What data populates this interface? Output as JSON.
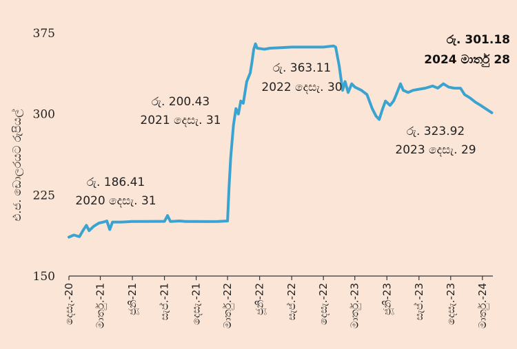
{
  "chart_data": {
    "type": "line",
    "ylabel": "එ.ජ. ඩොලරයට රුපියල්",
    "ylim": [
      150,
      375
    ],
    "yticks": [
      "375",
      "300",
      "225",
      "150"
    ],
    "ytick_values": [
      375,
      300,
      225,
      150
    ],
    "xlim": [
      "2020-12-01",
      "2024-03-31"
    ],
    "xticks": [
      {
        "label": "දෙසැ.-20",
        "date": "2020-12-01"
      },
      {
        "label": "මාර්තු.-21",
        "date": "2021-03-01"
      },
      {
        "label": "ජූනි-21",
        "date": "2021-06-01"
      },
      {
        "label": "සැප්.-21",
        "date": "2021-09-01"
      },
      {
        "label": "දෙසැ.-21",
        "date": "2021-12-01"
      },
      {
        "label": "මාර්තු.-22",
        "date": "2022-03-01"
      },
      {
        "label": "ජූනි-22",
        "date": "2022-06-01"
      },
      {
        "label": "සැප්.-22",
        "date": "2022-09-01"
      },
      {
        "label": "දෙසැ.-22",
        "date": "2022-12-01"
      },
      {
        "label": "මාර්තු.-23",
        "date": "2023-03-01"
      },
      {
        "label": "ජූනි-23",
        "date": "2023-06-01"
      },
      {
        "label": "සැප්.-23",
        "date": "2023-09-01"
      },
      {
        "label": "දෙසැ.-23",
        "date": "2023-12-01"
      },
      {
        "label": "මාර්තු.-24",
        "date": "2024-03-01"
      }
    ],
    "series": [
      {
        "color": "#3BA3D0",
        "points": [
          [
            "2020-12-01",
            186
          ],
          [
            "2020-12-15",
            188
          ],
          [
            "2020-12-31",
            186.41
          ],
          [
            "2021-01-10",
            192
          ],
          [
            "2021-01-20",
            197
          ],
          [
            "2021-01-28",
            192
          ],
          [
            "2021-02-10",
            196
          ],
          [
            "2021-02-25",
            199
          ],
          [
            "2021-03-10",
            200
          ],
          [
            "2021-03-20",
            201
          ],
          [
            "2021-03-28",
            193
          ],
          [
            "2021-04-05",
            200
          ],
          [
            "2021-05-01",
            200
          ],
          [
            "2021-06-01",
            200.5
          ],
          [
            "2021-07-01",
            200.5
          ],
          [
            "2021-08-01",
            200.6
          ],
          [
            "2021-09-01",
            200.6
          ],
          [
            "2021-09-10",
            206
          ],
          [
            "2021-09-18",
            200.5
          ],
          [
            "2021-10-15",
            201
          ],
          [
            "2021-11-01",
            200.5
          ],
          [
            "2021-12-01",
            200.5
          ],
          [
            "2021-12-31",
            200.43
          ],
          [
            "2022-02-01",
            200.5
          ],
          [
            "2022-03-01",
            201
          ],
          [
            "2022-03-05",
            230
          ],
          [
            "2022-03-10",
            260
          ],
          [
            "2022-03-18",
            290
          ],
          [
            "2022-03-25",
            305
          ],
          [
            "2022-04-01",
            300
          ],
          [
            "2022-04-08",
            312
          ],
          [
            "2022-04-15",
            310
          ],
          [
            "2022-04-25",
            330
          ],
          [
            "2022-05-05",
            338
          ],
          [
            "2022-05-10",
            348
          ],
          [
            "2022-05-15",
            360
          ],
          [
            "2022-05-20",
            365
          ],
          [
            "2022-05-25",
            361
          ],
          [
            "2022-06-15",
            360
          ],
          [
            "2022-07-01",
            361
          ],
          [
            "2022-08-01",
            361.5
          ],
          [
            "2022-09-01",
            362
          ],
          [
            "2022-10-01",
            362
          ],
          [
            "2022-11-01",
            362
          ],
          [
            "2022-12-01",
            362
          ],
          [
            "2022-12-30",
            363.11
          ],
          [
            "2023-01-05",
            362
          ],
          [
            "2023-01-15",
            345
          ],
          [
            "2023-01-25",
            322
          ],
          [
            "2023-02-01",
            330
          ],
          [
            "2023-02-10",
            320
          ],
          [
            "2023-02-20",
            328
          ],
          [
            "2023-03-01",
            325
          ],
          [
            "2023-03-20",
            322
          ],
          [
            "2023-04-05",
            318
          ],
          [
            "2023-04-20",
            305
          ],
          [
            "2023-05-01",
            298
          ],
          [
            "2023-05-10",
            295
          ],
          [
            "2023-05-20",
            305
          ],
          [
            "2023-05-28",
            312
          ],
          [
            "2023-06-10",
            308
          ],
          [
            "2023-06-20",
            312
          ],
          [
            "2023-06-28",
            318
          ],
          [
            "2023-07-10",
            328
          ],
          [
            "2023-07-18",
            322
          ],
          [
            "2023-08-01",
            320
          ],
          [
            "2023-08-15",
            322
          ],
          [
            "2023-09-01",
            323
          ],
          [
            "2023-09-20",
            324
          ],
          [
            "2023-10-10",
            326
          ],
          [
            "2023-10-25",
            324
          ],
          [
            "2023-11-10",
            328
          ],
          [
            "2023-11-25",
            325
          ],
          [
            "2023-12-10",
            324
          ],
          [
            "2023-12-29",
            323.92
          ],
          [
            "2024-01-10",
            318
          ],
          [
            "2024-01-25",
            315
          ],
          [
            "2024-02-10",
            311
          ],
          [
            "2024-02-25",
            308
          ],
          [
            "2024-03-10",
            305
          ],
          [
            "2024-03-28",
            301.18
          ]
        ]
      }
    ],
    "annotations": [
      {
        "id": "2020",
        "lines": [
          "රු. 186.41",
          "2020 දෙසැ. 31"
        ],
        "bold": false
      },
      {
        "id": "2021",
        "lines": [
          "රු. 200.43",
          "2021 දෙසැ. 31"
        ],
        "bold": false
      },
      {
        "id": "2022",
        "lines": [
          "රු. 363.11",
          "2022 දෙසැ. 30"
        ],
        "bold": false
      },
      {
        "id": "2023",
        "lines": [
          "රු. 323.92",
          "2023 දෙසැ. 29"
        ],
        "bold": false
      },
      {
        "id": "2024",
        "lines": [
          "රු. 301.18",
          "2024 මාර්තු  28"
        ],
        "bold": true
      }
    ]
  }
}
